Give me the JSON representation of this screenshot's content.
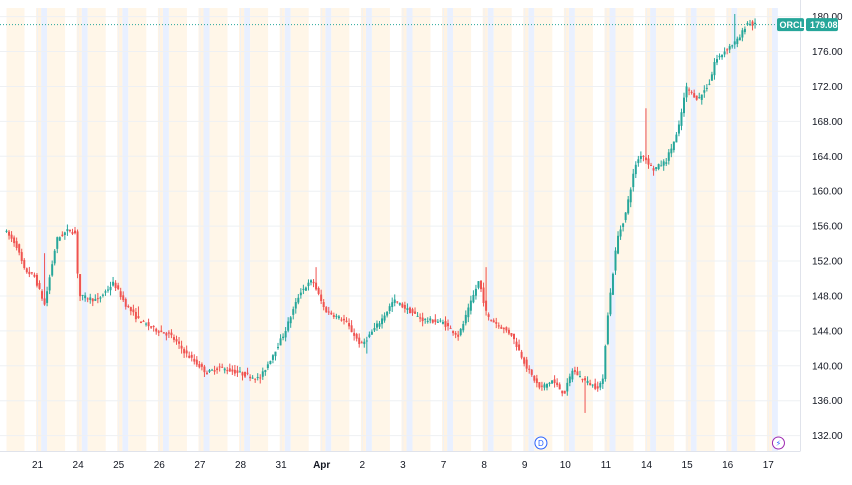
{
  "chart_data": {
    "type": "candlestick",
    "symbol": "ORCL",
    "last_price": "179.08",
    "ylim": [
      130.5,
      180.3
    ],
    "y_ticks": [
      "180.00",
      "176.00",
      "172.00",
      "168.00",
      "164.00",
      "160.00",
      "156.00",
      "152.00",
      "148.00",
      "144.00",
      "140.00",
      "136.00",
      "132.00"
    ],
    "x_labels": [
      {
        "label": "21",
        "day": 0
      },
      {
        "label": "24",
        "day": 1
      },
      {
        "label": "25",
        "day": 2
      },
      {
        "label": "26",
        "day": 3
      },
      {
        "label": "27",
        "day": 4
      },
      {
        "label": "28",
        "day": 5
      },
      {
        "label": "31",
        "day": 6
      },
      {
        "label": "Apr",
        "day": 7,
        "bold": true
      },
      {
        "label": "2",
        "day": 8
      },
      {
        "label": "3",
        "day": 9
      },
      {
        "label": "7",
        "day": 10
      },
      {
        "label": "8",
        "day": 11
      },
      {
        "label": "9",
        "day": 12
      },
      {
        "label": "10",
        "day": 13
      },
      {
        "label": "11",
        "day": 14
      },
      {
        "label": "14",
        "day": 15
      },
      {
        "label": "15",
        "day": 16
      },
      {
        "label": "16",
        "day": 17
      },
      {
        "label": "17",
        "day": 18
      }
    ],
    "days": 19,
    "session_shading": true,
    "grid": true,
    "events": [
      {
        "type": "dividend",
        "label": "D",
        "day": 12.4,
        "color": "#2962ff"
      },
      {
        "type": "earnings",
        "label": "⚡",
        "day": 18.25,
        "color": "#9c27b0"
      }
    ],
    "up_color": "#26a69a",
    "down_color": "#ef5350",
    "anchors": [
      [
        0,
        155.6
      ],
      [
        0.3,
        153.9
      ],
      [
        0.5,
        151
      ],
      [
        0.75,
        150.2
      ],
      [
        1,
        147
      ],
      [
        1.3,
        154.5
      ],
      [
        1.6,
        155.6
      ],
      [
        1.75,
        155.2
      ],
      [
        1.85,
        148
      ],
      [
        2.3,
        147.5
      ],
      [
        2.7,
        149.5
      ],
      [
        3.0,
        147
      ],
      [
        3.3,
        145.3
      ],
      [
        3.7,
        144.2
      ],
      [
        4.1,
        143.5
      ],
      [
        4.5,
        141.3
      ],
      [
        5.0,
        139.2
      ],
      [
        5.3,
        139.8
      ],
      [
        5.7,
        139.3
      ],
      [
        6.3,
        138.5
      ],
      [
        6.5,
        140.2
      ],
      [
        6.9,
        143.7
      ],
      [
        7.3,
        148.5
      ],
      [
        7.6,
        149.8
      ],
      [
        7.9,
        146.4
      ],
      [
        8.4,
        145.1
      ],
      [
        8.8,
        142.3
      ],
      [
        9.3,
        145.3
      ],
      [
        9.6,
        147.5
      ],
      [
        10.3,
        145.3
      ],
      [
        10.8,
        145
      ],
      [
        11.2,
        143.4
      ],
      [
        11.7,
        149.8
      ],
      [
        11.9,
        145.6
      ],
      [
        12.5,
        143.6
      ],
      [
        12.9,
        139.6
      ],
      [
        13.2,
        137.4
      ],
      [
        13.5,
        138.3
      ],
      [
        13.8,
        136.8
      ],
      [
        14.0,
        139.5
      ],
      [
        14.3,
        138.3
      ],
      [
        14.6,
        137.5
      ],
      [
        14.75,
        138.3
      ],
      [
        14.85,
        145
      ],
      [
        15.1,
        154.5
      ],
      [
        15.3,
        157.2
      ],
      [
        15.55,
        163
      ],
      [
        15.7,
        164.3
      ],
      [
        16.0,
        162.5
      ],
      [
        16.3,
        163.4
      ],
      [
        16.6,
        166.8
      ],
      [
        16.8,
        171.9
      ],
      [
        17.1,
        170.5
      ],
      [
        17.4,
        172.6
      ],
      [
        17.5,
        174.8
      ],
      [
        17.8,
        176.3
      ],
      [
        18.1,
        177.4
      ],
      [
        18.3,
        179.3
      ],
      [
        18.45,
        179.08
      ]
    ],
    "spikes": [
      {
        "day": 0.92,
        "high": 152.9
      },
      {
        "day": 3.25,
        "high": 146.8
      },
      {
        "day": 7.65,
        "high": 151.3
      },
      {
        "day": 11.8,
        "high": 151.3
      },
      {
        "day": 15.75,
        "high": 169.5
      },
      {
        "day": 17.95,
        "high": 180.3
      },
      {
        "day": 14.25,
        "low": 134.6
      },
      {
        "day": 8.9,
        "low": 141.4
      }
    ]
  }
}
